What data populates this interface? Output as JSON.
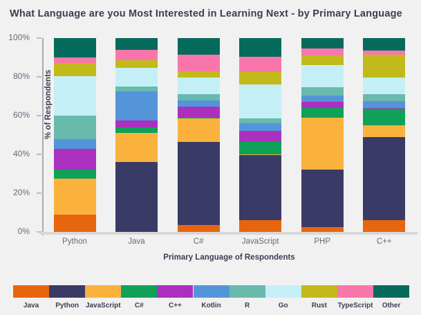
{
  "chart_data": {
    "type": "bar",
    "stacked": true,
    "title": "What Language are you Most Interested in Learning Next - by Primary Language",
    "xlabel": "Primary Language of Respondents",
    "ylabel": "% of Respondents",
    "ylim": [
      0,
      100
    ],
    "yticks": [
      0,
      20,
      40,
      60,
      80,
      100
    ],
    "ytick_labels": [
      "0%",
      "20%",
      "40%",
      "60%",
      "80%",
      "100%"
    ],
    "grid": false,
    "legend_position": "bottom",
    "units": "percent of respondents",
    "categories": [
      "Python",
      "Java",
      "C#",
      "JavaScript",
      "PHP",
      "C++"
    ],
    "series": [
      {
        "name": "Java",
        "color": "#e8650f",
        "values": [
          9,
          0,
          3.5,
          6,
          2.5,
          6
        ]
      },
      {
        "name": "Python",
        "color": "#3a3a67",
        "values": [
          0,
          36,
          43,
          33.5,
          29.5,
          43
        ]
      },
      {
        "name": "JavaScript",
        "color": "#fab23c",
        "values": [
          18.5,
          15,
          12,
          0.5,
          27,
          6
        ]
      },
      {
        "name": "C#",
        "color": "#10a159",
        "values": [
          4.5,
          3,
          0.5,
          6.5,
          5,
          8.5
        ]
      },
      {
        "name": "C++",
        "color": "#ab30c0",
        "values": [
          11,
          3.5,
          5.5,
          5.5,
          3,
          0.5
        ]
      },
      {
        "name": "Kotlin",
        "color": "#5495da",
        "values": [
          5,
          15,
          3.5,
          4,
          3.5,
          3.5
        ]
      },
      {
        "name": "R",
        "color": "#68baad",
        "values": [
          12,
          2.5,
          3,
          2.5,
          4,
          3.5
        ]
      },
      {
        "name": "Go",
        "color": "#c5eff7",
        "values": [
          20.5,
          9.5,
          8.5,
          17.5,
          11.5,
          8.5
        ]
      },
      {
        "name": "Rust",
        "color": "#c2ba1b",
        "values": [
          6.5,
          4,
          3.5,
          6.5,
          5,
          12
        ]
      },
      {
        "name": "TypeScript",
        "color": "#f976ab",
        "values": [
          3,
          5.5,
          8.5,
          8,
          3.5,
          2
        ]
      },
      {
        "name": "Other",
        "color": "#046a5c",
        "values": [
          10,
          6,
          8.5,
          9.5,
          5.5,
          6.5
        ]
      }
    ]
  },
  "colors": {
    "background": "#f1f1f1",
    "title_text": "#3e3c52",
    "tick_text": "#6a6778",
    "y_axis_line": "#ababaf",
    "x_axis_line": "#d8d8da"
  }
}
